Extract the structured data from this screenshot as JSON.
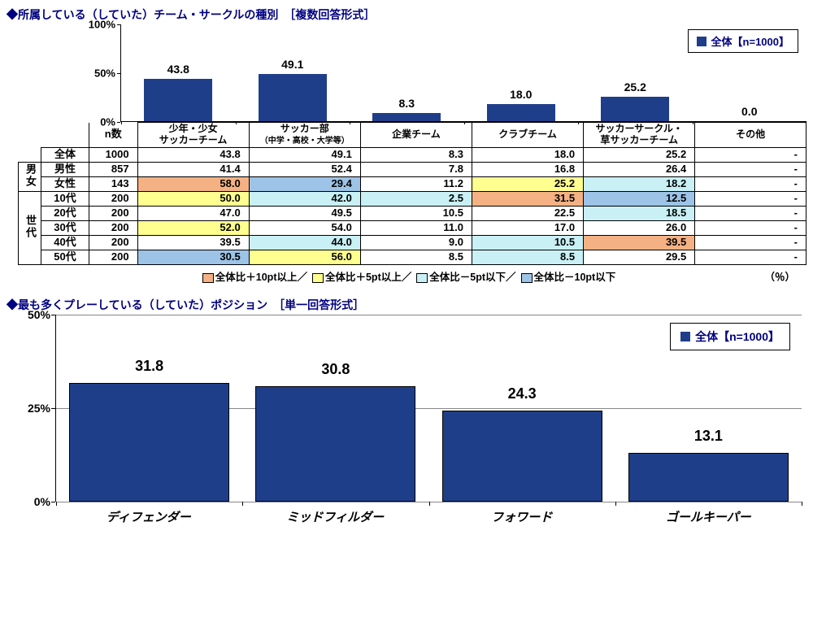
{
  "colors": {
    "bar": "#1f3e8a",
    "bar_border": "#000000",
    "title": "#000080",
    "hl_plus10": "#f4b183",
    "hl_plus5": "#ffff8f",
    "hl_minus5": "#c8f0f5",
    "hl_minus10": "#9dc3e6"
  },
  "chart1": {
    "title": "◆所属している（していた）チーム・サークルの種別　［複数回答形式］",
    "legend": "全体【n=1000】",
    "ymax": 100,
    "yticks": [
      0,
      50,
      100
    ],
    "categories": [
      {
        "label_line1": "少年・少女",
        "label_line2": "サッカーチーム",
        "sub": ""
      },
      {
        "label_line1": "サッカー部",
        "label_line2": "",
        "sub": "（中学・高校・大学等）"
      },
      {
        "label_line1": "企業チーム",
        "label_line2": "",
        "sub": ""
      },
      {
        "label_line1": "クラブチーム",
        "label_line2": "",
        "sub": ""
      },
      {
        "label_line1": "サッカーサークル・",
        "label_line2": "草サッカーチーム",
        "sub": ""
      },
      {
        "label_line1": "その他",
        "label_line2": "",
        "sub": ""
      }
    ],
    "values": [
      43.8,
      49.1,
      8.3,
      18.0,
      25.2,
      0.0
    ]
  },
  "table": {
    "n_label": "n数",
    "group_labels": {
      "gender": "男女",
      "age": "世代"
    },
    "columns_count": 6,
    "rows": [
      {
        "grp": null,
        "label": "全体",
        "n": 1000,
        "cells": [
          {
            "v": "43.8"
          },
          {
            "v": "49.1"
          },
          {
            "v": "8.3"
          },
          {
            "v": "18.0"
          },
          {
            "v": "25.2"
          },
          {
            "v": "-",
            "dash": true
          }
        ]
      },
      {
        "grp": "gender",
        "label": "男性",
        "n": 857,
        "cells": [
          {
            "v": "41.4"
          },
          {
            "v": "52.4"
          },
          {
            "v": "7.8"
          },
          {
            "v": "16.8"
          },
          {
            "v": "26.4"
          },
          {
            "v": "-",
            "dash": true
          }
        ]
      },
      {
        "grp": "gender",
        "label": "女性",
        "n": 143,
        "cells": [
          {
            "v": "58.0",
            "hl": "plus10"
          },
          {
            "v": "29.4",
            "hl": "minus10"
          },
          {
            "v": "11.2"
          },
          {
            "v": "25.2",
            "hl": "plus5"
          },
          {
            "v": "18.2",
            "hl": "minus5"
          },
          {
            "v": "-",
            "dash": true
          }
        ]
      },
      {
        "grp": "age",
        "label": "10代",
        "n": 200,
        "cells": [
          {
            "v": "50.0",
            "hl": "plus5"
          },
          {
            "v": "42.0",
            "hl": "minus5"
          },
          {
            "v": "2.5",
            "hl": "minus5"
          },
          {
            "v": "31.5",
            "hl": "plus10"
          },
          {
            "v": "12.5",
            "hl": "minus10"
          },
          {
            "v": "-",
            "dash": true
          }
        ]
      },
      {
        "grp": "age",
        "label": "20代",
        "n": 200,
        "cells": [
          {
            "v": "47.0"
          },
          {
            "v": "49.5"
          },
          {
            "v": "10.5"
          },
          {
            "v": "22.5"
          },
          {
            "v": "18.5",
            "hl": "minus5"
          },
          {
            "v": "-",
            "dash": true
          }
        ]
      },
      {
        "grp": "age",
        "label": "30代",
        "n": 200,
        "cells": [
          {
            "v": "52.0",
            "hl": "plus5"
          },
          {
            "v": "54.0"
          },
          {
            "v": "11.0"
          },
          {
            "v": "17.0"
          },
          {
            "v": "26.0"
          },
          {
            "v": "-",
            "dash": true
          }
        ]
      },
      {
        "grp": "age",
        "label": "40代",
        "n": 200,
        "cells": [
          {
            "v": "39.5"
          },
          {
            "v": "44.0",
            "hl": "minus5"
          },
          {
            "v": "9.0"
          },
          {
            "v": "10.5",
            "hl": "minus5"
          },
          {
            "v": "39.5",
            "hl": "plus10"
          },
          {
            "v": "-",
            "dash": true
          }
        ]
      },
      {
        "grp": "age",
        "label": "50代",
        "n": 200,
        "cells": [
          {
            "v": "30.5",
            "hl": "minus10"
          },
          {
            "v": "56.0",
            "hl": "plus5"
          },
          {
            "v": "8.5"
          },
          {
            "v": "8.5",
            "hl": "minus5"
          },
          {
            "v": "29.5"
          },
          {
            "v": "-",
            "dash": true
          }
        ]
      }
    ],
    "col_widths": {
      "grp": 26,
      "label": 60,
      "n": 60,
      "data": 140
    }
  },
  "legend_line": {
    "items": [
      {
        "swatch": "plus10",
        "text": "全体比＋10pt以上／"
      },
      {
        "swatch": "plus5",
        "text": "全体比＋5pt以上／"
      },
      {
        "swatch": "minus5",
        "text": "全体比－5pt以下／"
      },
      {
        "swatch": "minus10",
        "text": "全体比－10pt以下"
      }
    ],
    "pct": "（％）"
  },
  "chart2": {
    "title": "◆最も多くプレーしている（していた）ポジション　［単一回答形式］",
    "legend": "全体【n=1000】",
    "ymax": 50,
    "yticks": [
      0,
      25,
      50
    ],
    "categories": [
      "ディフェンダー",
      "ミッドフィルダー",
      "フォワード",
      "ゴールキーパー"
    ],
    "values": [
      31.8,
      30.8,
      24.3,
      13.1
    ]
  }
}
